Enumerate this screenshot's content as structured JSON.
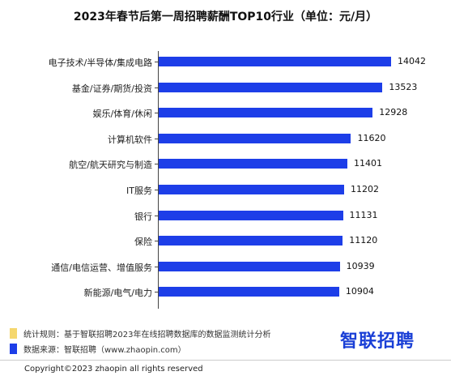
{
  "chart_data": {
    "type": "bar",
    "orientation": "horizontal",
    "title": "2023年春节后第一周招聘薪酬TOP10行业（单位：元/月）",
    "categories": [
      "电子技术/半导体/集成电路",
      "基金/证券/期货/投资",
      "娱乐/体育/休闲",
      "计算机软件",
      "航空/航天研究与制造",
      "IT服务",
      "银行",
      "保险",
      "通信/电信运营、增值服务",
      "新能源/电气/电力"
    ],
    "values": [
      14042,
      13523,
      12928,
      11620,
      11401,
      11202,
      11131,
      11120,
      10939,
      10904
    ],
    "bar_color": "#1d3ee8",
    "grid": false
  },
  "legend": [
    {
      "text": "统计规则：基于智联招聘2023年在线招聘数据库的数据监测统计分析",
      "color": "#f5d76e"
    },
    {
      "text": "数据来源：智联招聘（www.zhaopin.com）",
      "color": "#1d3ee8"
    }
  ],
  "brand": "智联招聘",
  "copyright": "Copyright©2023 zhaopin all rights reserved"
}
